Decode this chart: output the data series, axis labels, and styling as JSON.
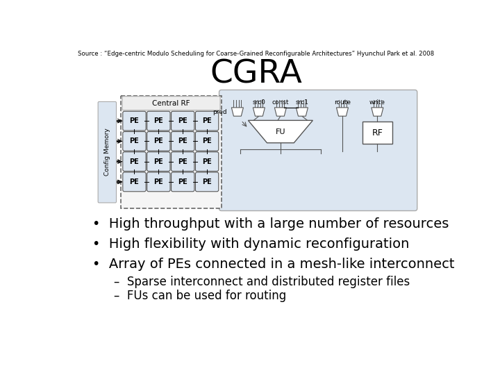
{
  "source_text": "Source : “Edge-centric Modulo Scheduling for Coarse-Grained Reconfigurable Architectures” Hyunchul Park et al. 2008",
  "title": "CGRA",
  "bullets": [
    "High throughput with a large number of resources",
    "High flexibility with dynamic reconfiguration",
    "Array of PEs connected in a mesh-like interconnect"
  ],
  "sub_bullets": [
    "Sparse interconnect and distributed register files",
    "FUs can be used for routing"
  ],
  "bg_color": "#ffffff",
  "text_color": "#000000",
  "diagram_bg": "#dce6f1",
  "pe_fill": "#dce6f1",
  "pe_border": "#555555"
}
